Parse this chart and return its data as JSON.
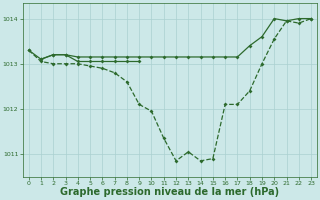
{
  "background_color": "#cce8e8",
  "grid_color": "#aad0d0",
  "line_color": "#2d6a2d",
  "xlabel": "Graphe pression niveau de la mer (hPa)",
  "xlabel_fontsize": 7,
  "ylim": [
    1010.5,
    1014.35
  ],
  "xlim": [
    -0.5,
    23.5
  ],
  "yticks": [
    1011,
    1012,
    1013,
    1014
  ],
  "xticks": [
    0,
    1,
    2,
    3,
    4,
    5,
    6,
    7,
    8,
    9,
    10,
    11,
    12,
    13,
    14,
    15,
    16,
    17,
    18,
    19,
    20,
    21,
    22,
    23
  ],
  "line1_x": [
    0,
    1,
    2,
    3,
    4,
    5,
    6,
    7,
    8,
    9
  ],
  "line1_y": [
    1013.3,
    1013.1,
    1013.2,
    1013.2,
    1013.05,
    1013.05,
    1013.05,
    1013.05,
    1013.05,
    1013.05
  ],
  "line2_x": [
    1,
    2,
    3,
    4,
    5,
    6,
    7,
    8,
    9,
    10,
    11,
    12,
    13,
    14,
    15,
    16,
    17,
    18,
    19,
    20,
    21,
    22,
    23
  ],
  "line2_y": [
    1013.1,
    1013.2,
    1013.2,
    1013.15,
    1013.15,
    1013.15,
    1013.15,
    1013.15,
    1013.15,
    1013.15,
    1013.15,
    1013.15,
    1013.15,
    1013.15,
    1013.15,
    1013.15,
    1013.15,
    1013.4,
    1013.6,
    1014.0,
    1013.95,
    1014.0,
    1014.0
  ],
  "line3_x": [
    0,
    1,
    2,
    3,
    4,
    5,
    6,
    7,
    8,
    9,
    10,
    11,
    12,
    13,
    14,
    15,
    16,
    17,
    18,
    19,
    20,
    21,
    22,
    23
  ],
  "line3_y": [
    1013.3,
    1013.05,
    1013.0,
    1013.0,
    1013.0,
    1012.95,
    1012.9,
    1012.8,
    1012.6,
    1012.1,
    1011.95,
    1011.35,
    1010.85,
    1011.05,
    1010.85,
    1010.9,
    1012.1,
    1012.1,
    1012.4,
    1013.0,
    1013.55,
    1013.95,
    1013.9,
    1014.0
  ]
}
